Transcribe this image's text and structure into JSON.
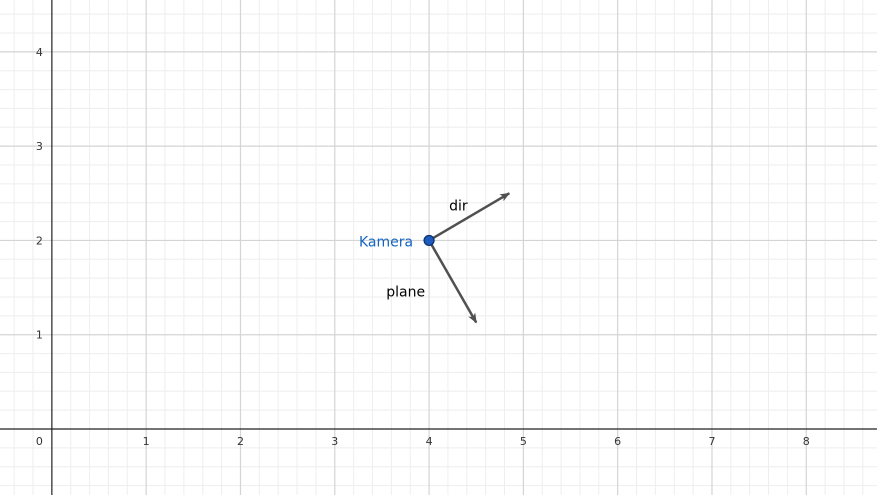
{
  "axes": {
    "x_range": [
      -0.55,
      8.75
    ],
    "y_range": [
      -0.7,
      4.55
    ],
    "x_ticks": [
      1,
      2,
      3,
      4,
      5,
      6,
      7,
      8
    ],
    "y_ticks": [
      1,
      2,
      3,
      4
    ],
    "origin_label": "0",
    "grid": true
  },
  "point": {
    "label": "Kamera",
    "x": 4,
    "y": 2,
    "color": "#1565c0"
  },
  "vectors": [
    {
      "label": "dir",
      "dx": 0.85,
      "dy": 0.5
    },
    {
      "label": "plane",
      "dx": 0.5,
      "dy": -0.87
    }
  ],
  "colors": {
    "vector": "#505050",
    "major_grid": "#d4d4d4",
    "minor_grid": "#eeeeee",
    "axis": "#222222",
    "point_fill": "#1e5bbf",
    "point_stroke": "#0d2f6b"
  }
}
